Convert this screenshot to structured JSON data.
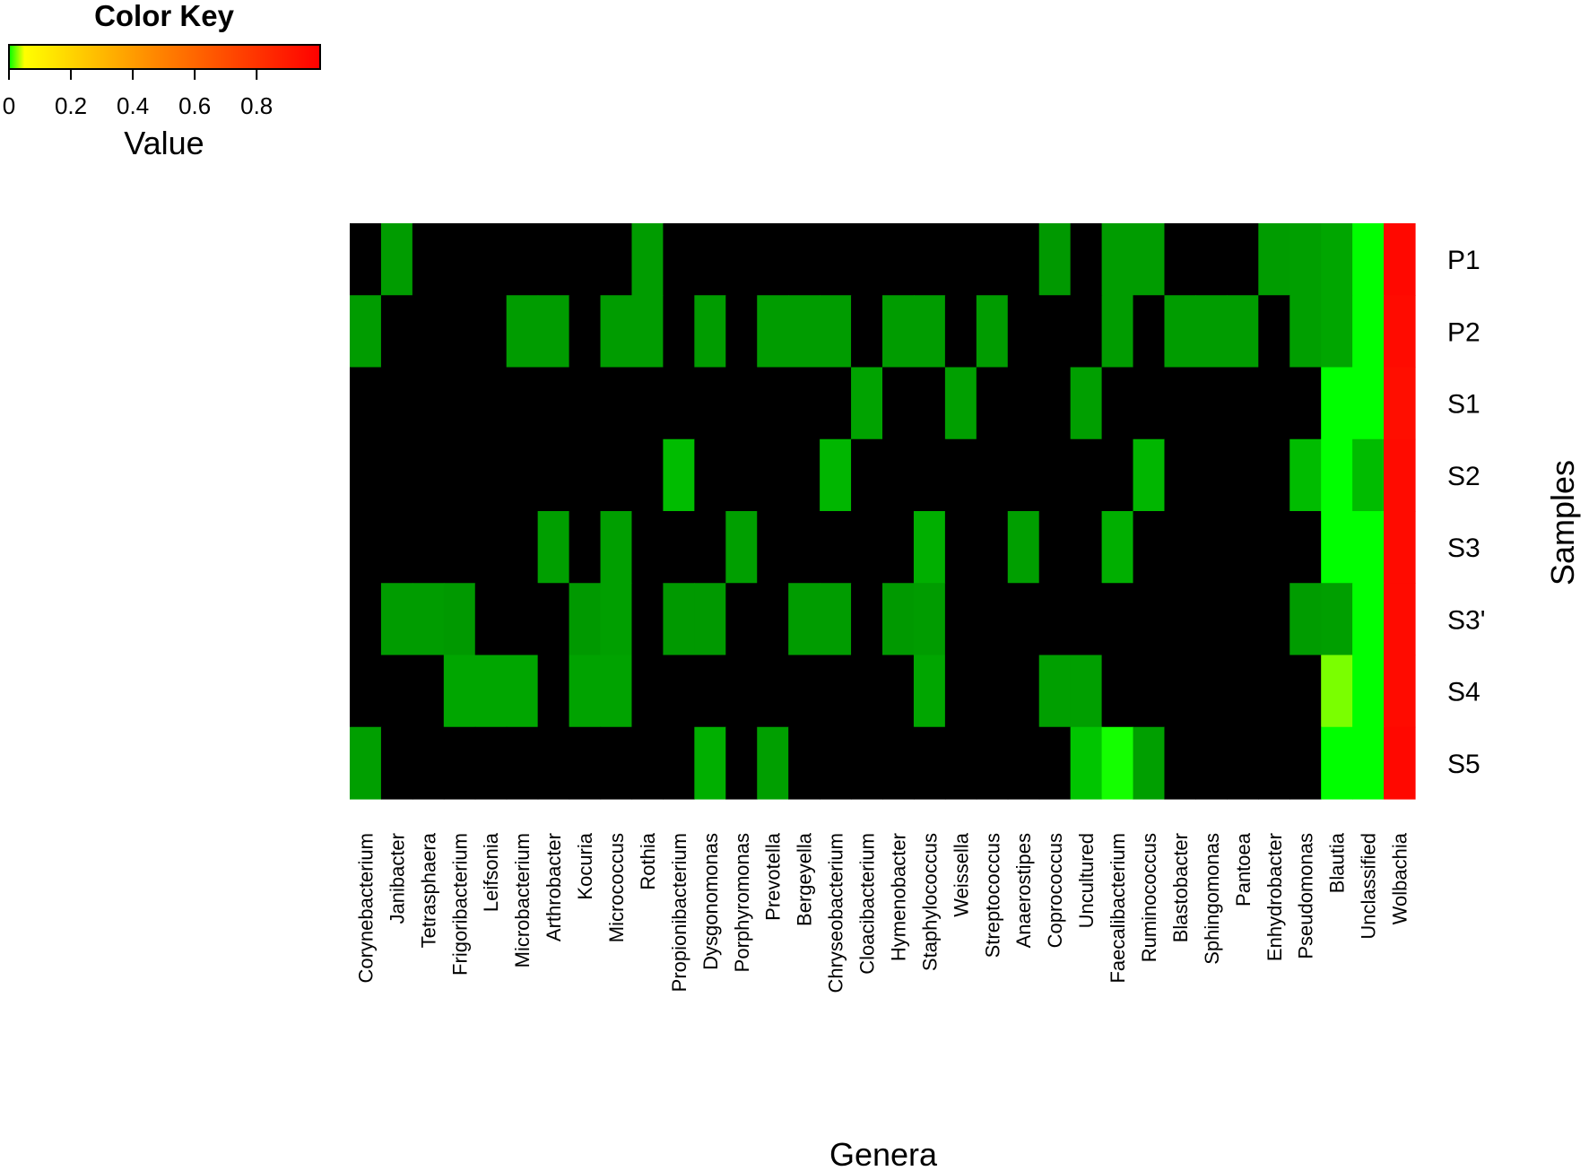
{
  "chart_data": {
    "type": "heatmap",
    "xlabel": "Genera",
    "ylabel": "Samples",
    "rows": [
      "P1",
      "P2",
      "S1",
      "S2",
      "S3",
      "S3'",
      "S4",
      "S5"
    ],
    "columns": [
      "Corynebacterium",
      "Janibacter",
      "Tetrasphaera",
      "Frigoribacterium",
      "Leifsonia",
      "Microbacterium",
      "Arthrobacter",
      "Kocuria",
      "Micrococcus",
      "Rothia",
      "Propionibacterium",
      "Dysgonomonas",
      "Porphyromonas",
      "Prevotella",
      "Bergeyella",
      "Chryseobacterium",
      "Cloacibacterium",
      "Hymenobacter",
      "Staphylococcus",
      "Weissella",
      "Streptococcus",
      "Anaerostipes",
      "Coprococcus",
      "Uncultured",
      "Faecalibacterium",
      "Ruminococcus",
      "Blastobacter",
      "Sphingomonas",
      "Pantoea",
      "Enhydrobacter",
      "Pseudomonas",
      "Blautia",
      "Unclassified",
      "Wolbachia"
    ],
    "zero_color": "#000000",
    "values": [
      [
        0,
        0.002,
        0,
        0,
        0,
        0,
        0,
        0,
        0,
        0.002,
        0,
        0,
        0,
        0,
        0,
        0,
        0,
        0,
        0,
        0,
        0,
        0,
        0.001,
        0,
        0.002,
        0.002,
        0,
        0,
        0,
        0.002,
        0.003,
        0.005,
        0.035,
        0.93
      ],
      [
        0.002,
        0,
        0,
        0,
        0,
        0.002,
        0.002,
        0,
        0.002,
        0.002,
        0,
        0.002,
        0,
        0.002,
        0.002,
        0.002,
        0,
        0.002,
        0.002,
        0,
        0.002,
        0,
        0,
        0,
        0.002,
        0,
        0.002,
        0.002,
        0.002,
        0,
        0.003,
        0.005,
        0.045,
        0.92
      ],
      [
        0,
        0,
        0,
        0,
        0,
        0,
        0,
        0,
        0,
        0,
        0,
        0,
        0,
        0,
        0,
        0,
        0.004,
        0,
        0,
        0.003,
        0,
        0,
        0,
        0.003,
        0,
        0,
        0,
        0,
        0,
        0,
        0,
        0.045,
        0.045,
        0.91
      ],
      [
        0,
        0,
        0,
        0,
        0,
        0,
        0,
        0,
        0,
        0,
        0.012,
        0,
        0,
        0,
        0,
        0.01,
        0,
        0,
        0,
        0,
        0,
        0,
        0,
        0,
        0,
        0.01,
        0,
        0,
        0,
        0,
        0.012,
        0.045,
        0.012,
        0.92
      ],
      [
        0,
        0,
        0,
        0,
        0,
        0,
        0.003,
        0,
        0.003,
        0,
        0,
        0,
        0.003,
        0,
        0,
        0,
        0,
        0,
        0.008,
        0,
        0,
        0.003,
        0,
        0,
        0.008,
        0,
        0,
        0,
        0,
        0,
        0,
        0.04,
        0.045,
        0.92
      ],
      [
        0,
        0.002,
        0.002,
        0.001,
        0,
        0,
        0,
        0.001,
        0.003,
        0,
        0.001,
        0.001,
        0,
        0,
        0.002,
        0.002,
        0,
        0.001,
        0.002,
        0,
        0,
        0,
        0,
        0,
        0,
        0,
        0,
        0,
        0,
        0,
        0.002,
        0.003,
        0.045,
        0.92
      ],
      [
        0,
        0,
        0,
        0.005,
        0.005,
        0.005,
        0,
        0.004,
        0.004,
        0,
        0,
        0,
        0,
        0,
        0,
        0,
        0,
        0,
        0.005,
        0,
        0,
        0,
        0.003,
        0.003,
        0,
        0,
        0,
        0,
        0,
        0,
        0,
        0.075,
        0.045,
        0.92
      ],
      [
        0.003,
        0,
        0,
        0,
        0,
        0,
        0,
        0,
        0,
        0,
        0,
        0.008,
        0,
        0.003,
        0,
        0,
        0,
        0,
        0,
        0,
        0,
        0,
        0,
        0.015,
        0.05,
        0.003,
        0,
        0,
        0,
        0,
        0,
        0.045,
        0.045,
        0.93
      ]
    ],
    "color_key": {
      "title": "Color Key",
      "label": "Value",
      "ticks": [
        "0",
        "0.2",
        "0.4",
        "0.6",
        "0.8"
      ],
      "range": [
        0,
        1
      ],
      "colors": [
        "#00ff00",
        "#ffff00",
        "#ff0000"
      ]
    }
  }
}
